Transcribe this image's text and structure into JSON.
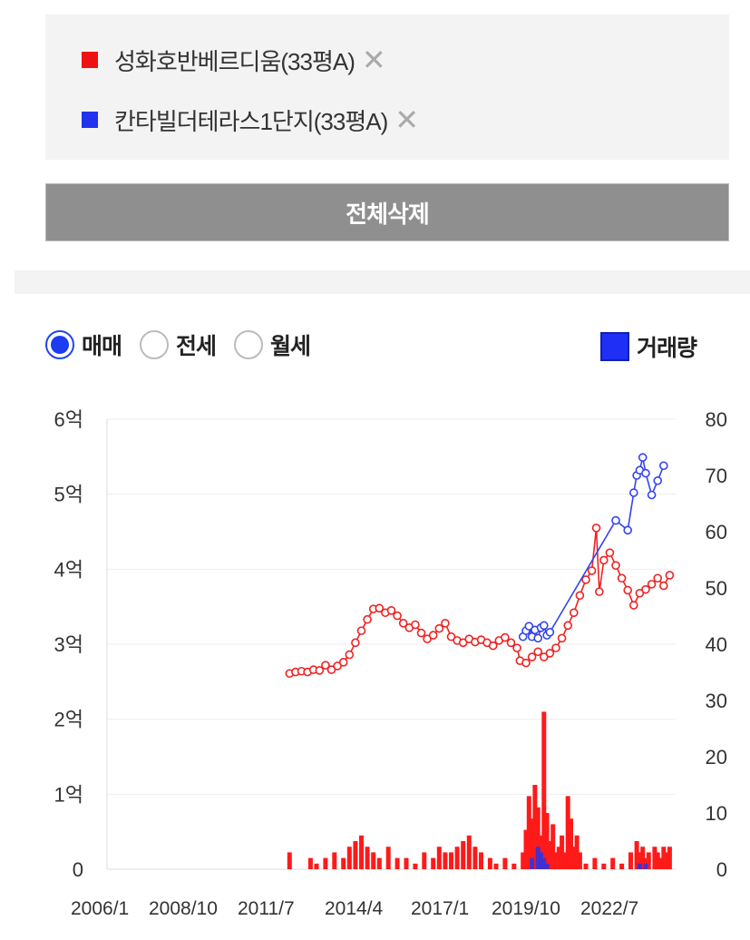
{
  "compare": {
    "items": [
      {
        "label": "성화호반베르디움(33평A)",
        "color": "#ee1111"
      },
      {
        "label": "칸타빌더테라스1단지(33평A)",
        "color": "#2233ee"
      }
    ],
    "close_icon": "close-icon"
  },
  "delete_all_label": "전체삭제",
  "deal_tabs": [
    {
      "label": "매매",
      "checked": true
    },
    {
      "label": "전세",
      "checked": false
    },
    {
      "label": "월세",
      "checked": false
    }
  ],
  "volume_label": "거래량",
  "chart_data": {
    "type": "line",
    "x_ticks": [
      "2006/1",
      "2008/10",
      "2011/7",
      "2014/4",
      "2017/1",
      "2019/10",
      "2022/7"
    ],
    "y_left_ticks": [
      "0",
      "1억",
      "2억",
      "3억",
      "4억",
      "5억",
      "6억"
    ],
    "y_right_ticks": [
      "0",
      "10",
      "20",
      "30",
      "40",
      "50",
      "60",
      "70",
      "80"
    ],
    "ylim_left": [
      0,
      6
    ],
    "ylim_right": [
      0,
      80
    ],
    "grid": true,
    "series": [
      {
        "name": "성화호반베르디움(33평A)",
        "color": "#ee2222",
        "price_points": [
          [
            2012.1,
            2.61
          ],
          [
            2012.3,
            2.63
          ],
          [
            2012.5,
            2.64
          ],
          [
            2012.7,
            2.63
          ],
          [
            2012.9,
            2.66
          ],
          [
            2013.1,
            2.65
          ],
          [
            2013.3,
            2.72
          ],
          [
            2013.5,
            2.66
          ],
          [
            2013.7,
            2.71
          ],
          [
            2013.9,
            2.76
          ],
          [
            2014.1,
            2.86
          ],
          [
            2014.3,
            3.02
          ],
          [
            2014.5,
            3.18
          ],
          [
            2014.7,
            3.33
          ],
          [
            2014.9,
            3.47
          ],
          [
            2015.1,
            3.48
          ],
          [
            2015.3,
            3.42
          ],
          [
            2015.5,
            3.45
          ],
          [
            2015.7,
            3.38
          ],
          [
            2015.9,
            3.28
          ],
          [
            2016.1,
            3.22
          ],
          [
            2016.3,
            3.26
          ],
          [
            2016.5,
            3.15
          ],
          [
            2016.7,
            3.07
          ],
          [
            2016.9,
            3.12
          ],
          [
            2017.1,
            3.21
          ],
          [
            2017.3,
            3.28
          ],
          [
            2017.5,
            3.1
          ],
          [
            2017.7,
            3.05
          ],
          [
            2017.9,
            3.02
          ],
          [
            2018.1,
            3.07
          ],
          [
            2018.3,
            3.03
          ],
          [
            2018.5,
            3.06
          ],
          [
            2018.7,
            3.02
          ],
          [
            2018.9,
            2.98
          ],
          [
            2019.1,
            3.05
          ],
          [
            2019.3,
            3.09
          ],
          [
            2019.5,
            3.02
          ],
          [
            2019.7,
            2.95
          ],
          [
            2019.8,
            2.78
          ],
          [
            2020.0,
            2.75
          ],
          [
            2020.2,
            2.83
          ],
          [
            2020.4,
            2.9
          ],
          [
            2020.6,
            2.83
          ],
          [
            2020.8,
            2.88
          ],
          [
            2021.0,
            2.95
          ],
          [
            2021.2,
            3.08
          ],
          [
            2021.4,
            3.25
          ],
          [
            2021.6,
            3.42
          ],
          [
            2021.8,
            3.65
          ],
          [
            2022.0,
            3.86
          ],
          [
            2022.2,
            3.98
          ],
          [
            2022.35,
            4.55
          ],
          [
            2022.45,
            3.7
          ],
          [
            2022.6,
            4.12
          ],
          [
            2022.8,
            4.22
          ],
          [
            2023.0,
            4.05
          ],
          [
            2023.2,
            3.88
          ],
          [
            2023.4,
            3.72
          ],
          [
            2023.6,
            3.52
          ],
          [
            2023.8,
            3.68
          ],
          [
            2024.0,
            3.73
          ],
          [
            2024.2,
            3.8
          ],
          [
            2024.4,
            3.88
          ],
          [
            2024.6,
            3.78
          ],
          [
            2024.8,
            3.92
          ]
        ],
        "volume": [
          [
            2012.1,
            3
          ],
          [
            2012.8,
            2
          ],
          [
            2013.0,
            1
          ],
          [
            2013.3,
            2
          ],
          [
            2013.6,
            3
          ],
          [
            2013.9,
            2
          ],
          [
            2014.1,
            4
          ],
          [
            2014.3,
            5
          ],
          [
            2014.5,
            6
          ],
          [
            2014.7,
            4
          ],
          [
            2014.9,
            3
          ],
          [
            2015.1,
            2
          ],
          [
            2015.4,
            4
          ],
          [
            2015.7,
            2
          ],
          [
            2016.0,
            2
          ],
          [
            2016.3,
            1
          ],
          [
            2016.6,
            3
          ],
          [
            2016.9,
            2
          ],
          [
            2017.1,
            4
          ],
          [
            2017.3,
            3
          ],
          [
            2017.5,
            3
          ],
          [
            2017.7,
            4
          ],
          [
            2017.9,
            5
          ],
          [
            2018.1,
            6
          ],
          [
            2018.3,
            4
          ],
          [
            2018.5,
            3
          ],
          [
            2018.8,
            2
          ],
          [
            2019.0,
            1
          ],
          [
            2019.3,
            2
          ],
          [
            2019.6,
            1
          ],
          [
            2019.9,
            3
          ],
          [
            2020.0,
            7
          ],
          [
            2020.1,
            13
          ],
          [
            2020.2,
            9
          ],
          [
            2020.3,
            15
          ],
          [
            2020.4,
            11
          ],
          [
            2020.5,
            6
          ],
          [
            2020.6,
            28
          ],
          [
            2020.7,
            10
          ],
          [
            2020.8,
            5
          ],
          [
            2020.9,
            8
          ],
          [
            2021.0,
            3
          ],
          [
            2021.1,
            4
          ],
          [
            2021.2,
            6
          ],
          [
            2021.3,
            3
          ],
          [
            2021.4,
            13
          ],
          [
            2021.5,
            9
          ],
          [
            2021.6,
            4
          ],
          [
            2021.7,
            6
          ],
          [
            2021.8,
            3
          ],
          [
            2022.0,
            1
          ],
          [
            2022.3,
            2
          ],
          [
            2022.6,
            1
          ],
          [
            2022.9,
            2
          ],
          [
            2023.2,
            1
          ],
          [
            2023.5,
            3
          ],
          [
            2023.7,
            5
          ],
          [
            2023.8,
            3
          ],
          [
            2023.9,
            4
          ],
          [
            2024.0,
            2
          ],
          [
            2024.1,
            3
          ],
          [
            2024.3,
            4
          ],
          [
            2024.4,
            3
          ],
          [
            2024.5,
            2
          ],
          [
            2024.6,
            4
          ],
          [
            2024.7,
            3
          ],
          [
            2024.8,
            4
          ]
        ]
      },
      {
        "name": "칸타빌더테라스1단지(33평A)",
        "color": "#3344ee",
        "price_points": [
          [
            2019.9,
            3.1
          ],
          [
            2020.0,
            3.18
          ],
          [
            2020.1,
            3.24
          ],
          [
            2020.2,
            3.1
          ],
          [
            2020.3,
            3.19
          ],
          [
            2020.4,
            3.08
          ],
          [
            2020.5,
            3.22
          ],
          [
            2020.6,
            3.25
          ],
          [
            2020.7,
            3.12
          ],
          [
            2020.8,
            3.16
          ],
          [
            2023.0,
            4.65
          ],
          [
            2023.4,
            4.52
          ],
          [
            2023.6,
            5.02
          ],
          [
            2023.7,
            5.25
          ],
          [
            2023.8,
            5.32
          ],
          [
            2023.9,
            5.49
          ],
          [
            2024.0,
            5.28
          ],
          [
            2024.2,
            4.99
          ],
          [
            2024.4,
            5.18
          ],
          [
            2024.6,
            5.38
          ]
        ],
        "volume": [
          [
            2020.2,
            2
          ],
          [
            2020.4,
            4
          ],
          [
            2020.5,
            3
          ],
          [
            2020.6,
            2
          ],
          [
            2020.7,
            1
          ],
          [
            2023.8,
            1
          ],
          [
            2024.0,
            1
          ]
        ]
      }
    ]
  }
}
